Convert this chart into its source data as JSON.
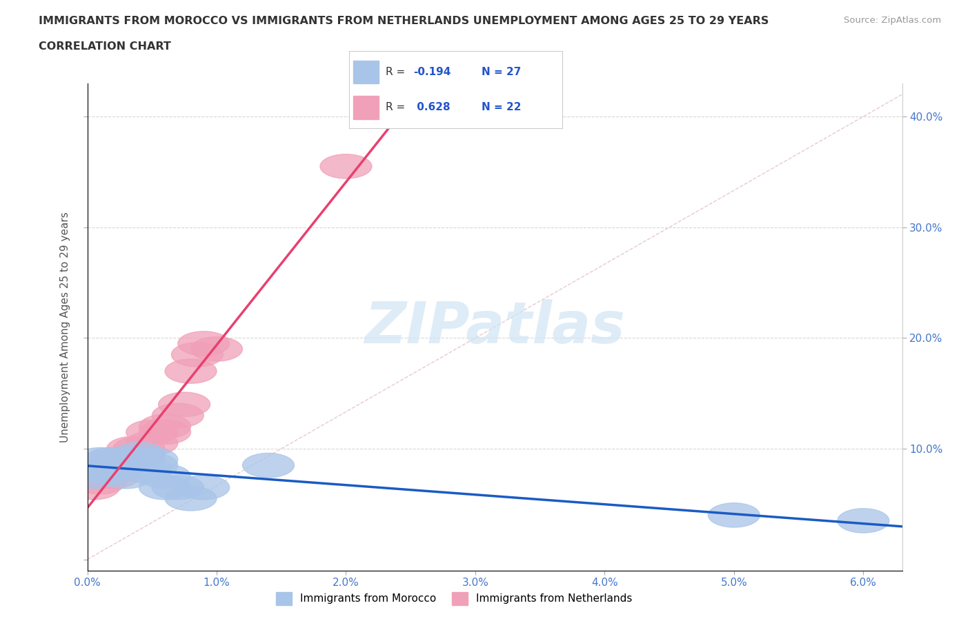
{
  "title_line1": "IMMIGRANTS FROM MOROCCO VS IMMIGRANTS FROM NETHERLANDS UNEMPLOYMENT AMONG AGES 25 TO 29 YEARS",
  "title_line2": "CORRELATION CHART",
  "source": "Source: ZipAtlas.com",
  "ylabel": "Unemployment Among Ages 25 to 29 years",
  "xlim": [
    0.0,
    0.063
  ],
  "ylim": [
    -0.01,
    0.43
  ],
  "xticks": [
    0.0,
    0.01,
    0.02,
    0.03,
    0.04,
    0.05,
    0.06
  ],
  "xticklabels": [
    "0.0%",
    "1.0%",
    "2.0%",
    "3.0%",
    "4.0%",
    "5.0%",
    "6.0%"
  ],
  "yticks_right": [
    0.1,
    0.2,
    0.3,
    0.4
  ],
  "yticklabels_right": [
    "10.0%",
    "20.0%",
    "30.0%",
    "40.0%"
  ],
  "morocco_color": "#a8c4e8",
  "netherlands_color": "#f0a0b8",
  "morocco_line_color": "#1a5bc4",
  "netherlands_line_color": "#e84070",
  "reference_line_color": "#d0d0d0",
  "watermark_color": "#d0e4f5",
  "legend_text_color": "#2255cc",
  "tick_color": "#4477cc",
  "grid_color": "#d8d8d8",
  "background_color": "#ffffff",
  "morocco_x": [
    0.0005,
    0.001,
    0.001,
    0.0015,
    0.0015,
    0.0018,
    0.002,
    0.002,
    0.0022,
    0.0025,
    0.003,
    0.003,
    0.003,
    0.0035,
    0.004,
    0.004,
    0.0045,
    0.005,
    0.005,
    0.006,
    0.006,
    0.007,
    0.008,
    0.009,
    0.014,
    0.05,
    0.06
  ],
  "morocco_y": [
    0.075,
    0.08,
    0.09,
    0.08,
    0.085,
    0.09,
    0.085,
    0.09,
    0.08,
    0.085,
    0.075,
    0.085,
    0.09,
    0.085,
    0.09,
    0.095,
    0.08,
    0.085,
    0.09,
    0.075,
    0.065,
    0.065,
    0.055,
    0.065,
    0.085,
    0.04,
    0.035
  ],
  "netherlands_x": [
    0.0005,
    0.001,
    0.001,
    0.0015,
    0.002,
    0.002,
    0.0025,
    0.003,
    0.0035,
    0.004,
    0.004,
    0.005,
    0.005,
    0.006,
    0.006,
    0.007,
    0.0075,
    0.008,
    0.0085,
    0.009,
    0.01,
    0.02
  ],
  "netherlands_y": [
    0.065,
    0.07,
    0.075,
    0.08,
    0.075,
    0.085,
    0.09,
    0.09,
    0.1,
    0.095,
    0.1,
    0.105,
    0.115,
    0.115,
    0.12,
    0.13,
    0.14,
    0.17,
    0.185,
    0.195,
    0.19,
    0.355
  ]
}
